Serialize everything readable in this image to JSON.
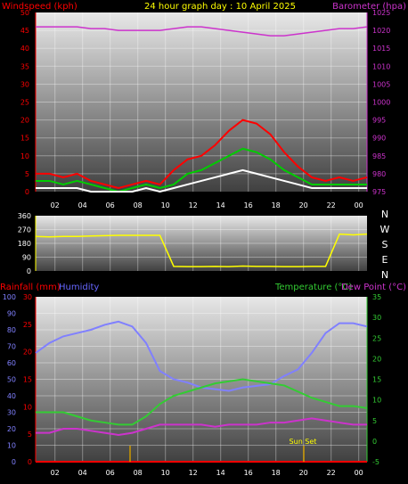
{
  "chart_data": [
    {
      "type": "line",
      "title": "24 hour graph day : 10 April 2025",
      "left_axis_label": "Windspeed (kph)",
      "right_axis_label": "Barometer (hpa)",
      "left_ticks": [
        "0",
        "5",
        "10",
        "15",
        "20",
        "25",
        "30",
        "35",
        "40",
        "45",
        "50"
      ],
      "right_ticks": [
        "975",
        "980",
        "985",
        "990",
        "995",
        "1000",
        "1005",
        "1010",
        "1015",
        "1020",
        "1025"
      ],
      "x_ticks": [
        "02",
        "04",
        "06",
        "08",
        "10",
        "12",
        "14",
        "16",
        "18",
        "20",
        "22",
        "00"
      ],
      "x": [
        0,
        1,
        2,
        3,
        4,
        5,
        6,
        7,
        8,
        9,
        10,
        11,
        12,
        13,
        14,
        15,
        16,
        17,
        18,
        19,
        20,
        21,
        22,
        23,
        24
      ],
      "ylim_left": [
        0,
        50
      ],
      "ylim_right": [
        975,
        1025
      ],
      "series": [
        {
          "name": "Windspeed (kph)",
          "color": "#ff0000",
          "axis": "left",
          "values": [
            5,
            5,
            4,
            5,
            3,
            2,
            1,
            2,
            3,
            2,
            6,
            9,
            10,
            13,
            17,
            20,
            19,
            16,
            11,
            7,
            4,
            3,
            4,
            3,
            4
          ]
        },
        {
          "name": "",
          "color": "#00cc00",
          "axis": "left",
          "values": [
            3,
            3,
            2,
            3,
            2,
            1,
            0,
            1,
            2,
            1,
            2,
            5,
            6,
            8,
            10,
            12,
            11,
            9,
            6,
            4,
            2,
            2,
            2,
            2,
            2
          ]
        },
        {
          "name": "",
          "color": "#ffffff",
          "axis": "left",
          "values": [
            1,
            1,
            1,
            1,
            0,
            0,
            0,
            0,
            1,
            0,
            1,
            2,
            3,
            4,
            5,
            6,
            5,
            4,
            3,
            2,
            1,
            1,
            1,
            1,
            1
          ]
        },
        {
          "name": "Barometer (hpa)",
          "color": "#cc33cc",
          "axis": "right",
          "values": [
            1021,
            1021,
            1021,
            1021,
            1020.5,
            1020.5,
            1020,
            1020,
            1020,
            1020,
            1020.5,
            1021,
            1021,
            1020.5,
            1020,
            1019.5,
            1019,
            1018.5,
            1018.5,
            1019,
            1019.5,
            1020,
            1020.5,
            1020.5,
            1021
          ]
        }
      ]
    },
    {
      "type": "line",
      "title": "",
      "left_ticks": [
        "0",
        "90",
        "180",
        "270",
        "360"
      ],
      "compass_letters": [
        "N",
        "W",
        "S",
        "E",
        "N"
      ],
      "x_ticks": [
        "02",
        "04",
        "06",
        "08",
        "10",
        "12",
        "14",
        "16",
        "18",
        "20",
        "22",
        "00"
      ],
      "ylim": [
        0,
        360
      ],
      "x": [
        0,
        1,
        2,
        3,
        4,
        5,
        6,
        7,
        8,
        9,
        10,
        11,
        12,
        13,
        14,
        15,
        16,
        17,
        18,
        19,
        20,
        21,
        22,
        23,
        24
      ],
      "series": [
        {
          "name": "Wind direction",
          "color": "#ffff00",
          "values": [
            225,
            222,
            225,
            225,
            228,
            230,
            232,
            232,
            232,
            232,
            30,
            28,
            28,
            30,
            28,
            32,
            30,
            30,
            28,
            28,
            30,
            30,
            240,
            235,
            240
          ]
        }
      ]
    },
    {
      "type": "line",
      "title": "",
      "left_axis_labels": [
        "Rainfall (mm)",
        "Humidity"
      ],
      "right_axis_labels": [
        "Temperature (°C)",
        "Dew Point (°C)"
      ],
      "humidity_ticks": [
        "0",
        "10",
        "20",
        "30",
        "40",
        "50",
        "60",
        "70",
        "80",
        "90",
        "100"
      ],
      "rain_ticks": [
        "0",
        "5",
        "10",
        "15",
        "20",
        "25",
        "30"
      ],
      "temp_ticks": [
        "-5",
        "0",
        "5",
        "10",
        "15",
        "20",
        "25",
        "30",
        "35"
      ],
      "x_ticks": [
        "02",
        "04",
        "06",
        "08",
        "10",
        "12",
        "14",
        "16",
        "18",
        "20",
        "22",
        "00"
      ],
      "annotation": "Sun Set",
      "x": [
        0,
        1,
        2,
        3,
        4,
        5,
        6,
        7,
        8,
        9,
        10,
        11,
        12,
        13,
        14,
        15,
        16,
        17,
        18,
        19,
        20,
        21,
        22,
        23,
        24
      ],
      "ylim_humidity": [
        0,
        100
      ],
      "ylim_temperature": [
        -5,
        35
      ],
      "series": [
        {
          "name": "Humidity",
          "color": "#8080ff",
          "axis": "humidity",
          "values": [
            66,
            72,
            76,
            78,
            80,
            83,
            85,
            82,
            72,
            55,
            50,
            48,
            45,
            44,
            43,
            45,
            46,
            47,
            52,
            56,
            66,
            78,
            84,
            84,
            82
          ]
        },
        {
          "name": "Temperature (°C)",
          "color": "#33cc33",
          "axis": "temperature",
          "values": [
            7,
            7,
            7,
            6,
            5,
            4.5,
            4,
            4,
            6,
            9,
            11,
            12,
            13,
            14,
            14.5,
            15,
            14.5,
            14,
            13.5,
            12,
            10.5,
            9.5,
            8.5,
            8.5,
            8
          ]
        },
        {
          "name": "Dew Point (°C)",
          "color": "#cc33cc",
          "axis": "temperature",
          "values": [
            2,
            2,
            3,
            3,
            2.5,
            2,
            1.5,
            2,
            3,
            4,
            4,
            4,
            4,
            3.5,
            4,
            4,
            4,
            4.5,
            4.5,
            5,
            5.5,
            5,
            4.5,
            4,
            4
          ]
        },
        {
          "name": "Rainfall (mm)",
          "color": "#ff0000",
          "axis": "rain",
          "values": [
            0,
            0,
            0,
            0,
            0,
            0,
            0,
            0,
            0,
            0,
            0,
            0,
            0,
            0,
            0,
            0,
            0,
            0,
            0,
            0,
            0,
            0,
            0,
            0,
            0
          ]
        }
      ]
    }
  ]
}
